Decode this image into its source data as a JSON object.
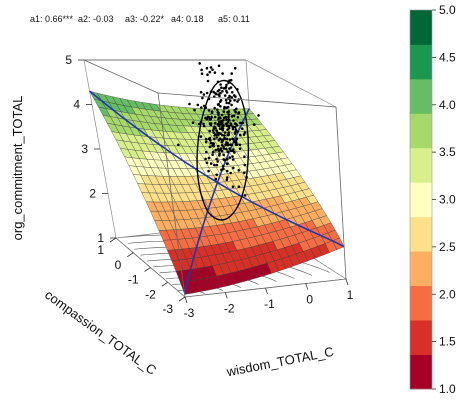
{
  "chart_data": {
    "type": "surface",
    "coefficients_line": [
      {
        "label": "a1",
        "value": "0.66***"
      },
      {
        "label": "a2",
        "value": "-0.03"
      },
      {
        "label": "a3",
        "value": "-0.22*"
      },
      {
        "label": "a4",
        "value": "0.18"
      },
      {
        "label": "a5",
        "value": "0.11"
      }
    ],
    "axes": {
      "z": {
        "label": "org_commitment_TOTAL",
        "ticks": [
          "1",
          "2",
          "3",
          "4",
          "5"
        ],
        "range": [
          1,
          5
        ]
      },
      "x": {
        "label": "wisdom_TOTAL_C",
        "ticks": [
          "-3",
          "-2",
          "-1",
          "0",
          "1"
        ],
        "range": [
          -3,
          1
        ]
      },
      "y": {
        "label": "compassion_TOTAL_C",
        "ticks": [
          "-3",
          "-2",
          "-1",
          "0",
          "1"
        ],
        "range": [
          -3,
          1
        ]
      }
    },
    "colorbar": {
      "ticks": [
        "1.0",
        "1.5",
        "2.0",
        "2.5",
        "3.0",
        "3.5",
        "4.0",
        "4.5",
        "5.0"
      ],
      "colors": [
        "#a50026",
        "#d73027",
        "#f46d43",
        "#fdae61",
        "#fee08b",
        "#ffffbf",
        "#d9ef8b",
        "#a6d96a",
        "#66bd63",
        "#1a9850",
        "#006837"
      ]
    },
    "surface": {
      "z_min": 1.0,
      "z_max": 5.0
    },
    "overlays": {
      "lines": [
        "line of congruence",
        "line of incongruence"
      ],
      "line_color": "#2233bb",
      "point_color": "#000000"
    }
  }
}
